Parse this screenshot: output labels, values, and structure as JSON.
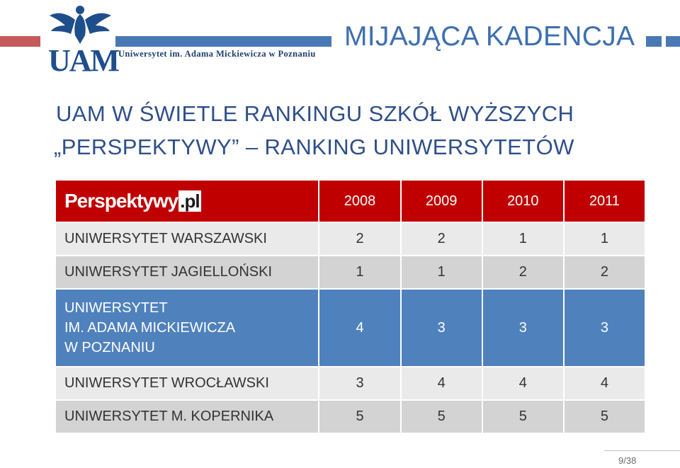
{
  "header": {
    "university_name": "Uniwersytet im. Adama Mickiewicza w Poznaniu",
    "logo_text": "UAM",
    "slide_title": "MIJAJĄCA KADENCJA"
  },
  "titles": {
    "line1": "UAM W ŚWIETLE RANKINGU SZKÓŁ WYŻSZYCH",
    "line2": "„PERSPEKTYWY” – RANKING UNIWERSYTETÓW"
  },
  "table": {
    "brand": "Perspektywy",
    "brand_suffix": ".pl",
    "years": [
      "2008",
      "2009",
      "2010",
      "2011"
    ],
    "rows": [
      {
        "name": "UNIWERSYTET WARSZAWSKI",
        "values": [
          "2",
          "2",
          "1",
          "1"
        ]
      },
      {
        "name": "UNIWERSYTET JAGIELLOŃSKI",
        "values": [
          "1",
          "1",
          "2",
          "2"
        ]
      },
      {
        "name_lines": [
          "UNIWERSYTET",
          "IM. ADAMA MICKIEWICZA",
          "W POZNANIU"
        ],
        "values": [
          "4",
          "3",
          "3",
          "3"
        ]
      },
      {
        "name": "UNIWERSYTET WROCŁAWSKI",
        "values": [
          "3",
          "4",
          "4",
          "4"
        ]
      },
      {
        "name": "UNIWERSYTET M. KOPERNIKA",
        "values": [
          "5",
          "5",
          "5",
          "5"
        ]
      }
    ]
  },
  "footer": {
    "page": "9/38"
  },
  "colors": {
    "header_red": "#c00000",
    "highlight_blue": "#4f81bd",
    "title_blue": "#2e4f8a"
  }
}
